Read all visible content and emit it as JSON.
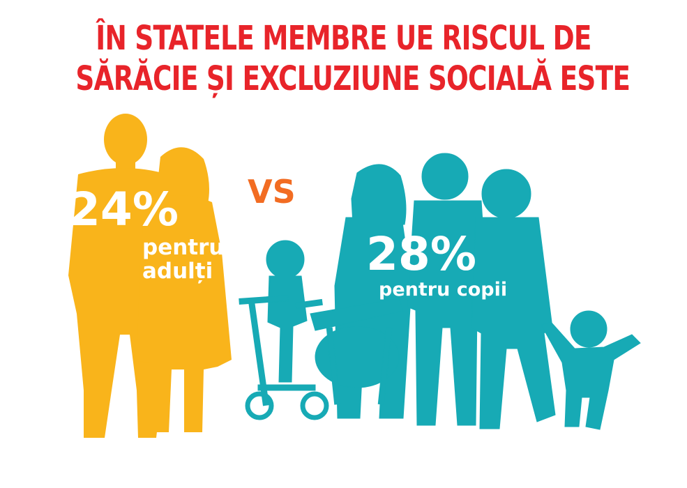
{
  "title": {
    "line1": "ÎN STATELE MEMBRE UE RISCUL DE",
    "line2": "SĂRĂCIE ȘI EXCLUZIUNE SOCIALĂ ESTE",
    "color": "#e8242a"
  },
  "adults": {
    "value": "24%",
    "label_line1": "pentru",
    "label_line2": "adulți",
    "color": "#f9b41b"
  },
  "versus": {
    "text": "VS",
    "color": "#f26c22"
  },
  "children": {
    "value": "28%",
    "label": "pentru copii",
    "color": "#17aab5"
  }
}
